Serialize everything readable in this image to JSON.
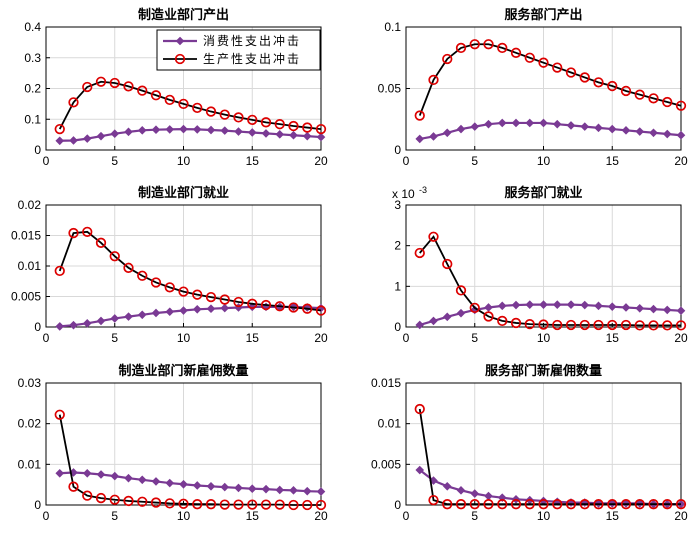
{
  "colors": {
    "consumption": "#7a3a94",
    "production_line": "#000000",
    "production_marker": "#dd0000"
  },
  "legend": {
    "consumption_label": "消费性支出冲击",
    "production_label": "生产性支出冲击"
  },
  "chart_data": [
    {
      "type": "line",
      "title": "制造业部门产出",
      "xlim": [
        0,
        20
      ],
      "ylim": [
        0,
        0.4
      ],
      "xticks": [
        0,
        5,
        10,
        15,
        20
      ],
      "yticks": [
        0,
        0.1,
        0.2,
        0.3,
        0.4
      ],
      "ytick_labels": [
        "0",
        "0.1",
        "0.2",
        "0.3",
        "0.4"
      ],
      "grid": true,
      "legend": "top-right",
      "x": [
        1,
        2,
        3,
        4,
        5,
        6,
        7,
        8,
        9,
        10,
        11,
        12,
        13,
        14,
        15,
        16,
        17,
        18,
        19,
        20
      ],
      "series": [
        {
          "name": "消费性支出冲击",
          "values": [
            0.03,
            0.031,
            0.037,
            0.045,
            0.053,
            0.059,
            0.064,
            0.066,
            0.067,
            0.068,
            0.067,
            0.065,
            0.063,
            0.06,
            0.057,
            0.054,
            0.051,
            0.048,
            0.045,
            0.042
          ]
        },
        {
          "name": "生产性支出冲击",
          "values": [
            0.068,
            0.155,
            0.205,
            0.222,
            0.218,
            0.207,
            0.193,
            0.178,
            0.163,
            0.15,
            0.137,
            0.125,
            0.115,
            0.106,
            0.098,
            0.09,
            0.084,
            0.078,
            0.073,
            0.068
          ]
        }
      ]
    },
    {
      "type": "line",
      "title": "服务部门产出",
      "xlim": [
        0,
        20
      ],
      "ylim": [
        0,
        0.1
      ],
      "xticks": [
        0,
        5,
        10,
        15,
        20
      ],
      "yticks": [
        0,
        0.05,
        0.1
      ],
      "ytick_labels": [
        "0",
        "0.05",
        "0.1"
      ],
      "grid": true,
      "x": [
        1,
        2,
        3,
        4,
        5,
        6,
        7,
        8,
        9,
        10,
        11,
        12,
        13,
        14,
        15,
        16,
        17,
        18,
        19,
        20
      ],
      "series": [
        {
          "name": "消费性支出冲击",
          "values": [
            0.009,
            0.011,
            0.014,
            0.017,
            0.019,
            0.021,
            0.022,
            0.022,
            0.022,
            0.022,
            0.021,
            0.02,
            0.019,
            0.018,
            0.017,
            0.016,
            0.015,
            0.014,
            0.013,
            0.012
          ]
        },
        {
          "name": "生产性支出冲击",
          "values": [
            0.028,
            0.057,
            0.074,
            0.083,
            0.086,
            0.086,
            0.083,
            0.079,
            0.075,
            0.071,
            0.067,
            0.063,
            0.059,
            0.055,
            0.052,
            0.048,
            0.045,
            0.042,
            0.039,
            0.036
          ]
        }
      ]
    },
    {
      "type": "line",
      "title": "制造业部门就业",
      "xlim": [
        0,
        20
      ],
      "ylim": [
        0,
        0.02
      ],
      "xticks": [
        0,
        5,
        10,
        15,
        20
      ],
      "yticks": [
        0,
        0.005,
        0.01,
        0.015,
        0.02
      ],
      "ytick_labels": [
        "0",
        "0.005",
        "0.01",
        "0.015",
        "0.02"
      ],
      "grid": true,
      "x": [
        1,
        2,
        3,
        4,
        5,
        6,
        7,
        8,
        9,
        10,
        11,
        12,
        13,
        14,
        15,
        16,
        17,
        18,
        19,
        20
      ],
      "series": [
        {
          "name": "消费性支出冲击",
          "values": [
            0.0001,
            0.0003,
            0.0006,
            0.001,
            0.0014,
            0.0017,
            0.002,
            0.0023,
            0.0025,
            0.0027,
            0.0029,
            0.003,
            0.0031,
            0.0032,
            0.0033,
            0.0033,
            0.0033,
            0.0033,
            0.0032,
            0.0031
          ]
        },
        {
          "name": "生产性支出冲击",
          "values": [
            0.0092,
            0.0154,
            0.0156,
            0.0138,
            0.0116,
            0.0097,
            0.0084,
            0.0073,
            0.0065,
            0.0058,
            0.0053,
            0.0049,
            0.0045,
            0.0041,
            0.0038,
            0.0036,
            0.0034,
            0.0032,
            0.003,
            0.0027
          ]
        }
      ]
    },
    {
      "type": "line",
      "title": "服务部门就业",
      "xlim": [
        0,
        20
      ],
      "ylim": [
        0,
        3
      ],
      "xticks": [
        0,
        5,
        10,
        15,
        20
      ],
      "yticks": [
        0,
        1,
        2,
        3
      ],
      "ytick_labels": [
        "0",
        "1",
        "2",
        "3"
      ],
      "y_multiplier_label": "x 10",
      "y_multiplier_exp": "-3",
      "grid": true,
      "x": [
        1,
        2,
        3,
        4,
        5,
        6,
        7,
        8,
        9,
        10,
        11,
        12,
        13,
        14,
        15,
        16,
        17,
        18,
        19,
        20
      ],
      "series": [
        {
          "name": "消费性支出冲击",
          "values": [
            0.05,
            0.15,
            0.25,
            0.34,
            0.42,
            0.48,
            0.52,
            0.54,
            0.55,
            0.55,
            0.55,
            0.55,
            0.54,
            0.52,
            0.5,
            0.48,
            0.46,
            0.44,
            0.42,
            0.4
          ]
        },
        {
          "name": "生产性支出冲击",
          "values": [
            1.82,
            2.22,
            1.55,
            0.9,
            0.47,
            0.26,
            0.15,
            0.1,
            0.07,
            0.06,
            0.05,
            0.05,
            0.05,
            0.05,
            0.05,
            0.05,
            0.04,
            0.04,
            0.04,
            0.04
          ]
        }
      ]
    },
    {
      "type": "line",
      "title": "制造业部门新雇佣数量",
      "xlim": [
        0,
        20
      ],
      "ylim": [
        0,
        0.03
      ],
      "xticks": [
        0,
        5,
        10,
        15,
        20
      ],
      "yticks": [
        0,
        0.01,
        0.02,
        0.03
      ],
      "ytick_labels": [
        "0",
        "0.01",
        "0.02",
        "0.03"
      ],
      "grid": true,
      "x": [
        1,
        2,
        3,
        4,
        5,
        6,
        7,
        8,
        9,
        10,
        11,
        12,
        13,
        14,
        15,
        16,
        17,
        18,
        19,
        20
      ],
      "series": [
        {
          "name": "消费性支出冲击",
          "values": [
            0.0078,
            0.008,
            0.0078,
            0.0075,
            0.0071,
            0.0066,
            0.0062,
            0.0058,
            0.0054,
            0.0051,
            0.0048,
            0.0046,
            0.0044,
            0.0042,
            0.004,
            0.0039,
            0.0037,
            0.0036,
            0.0034,
            0.0033
          ]
        },
        {
          "name": "生产性支出冲击",
          "values": [
            0.0222,
            0.0045,
            0.0023,
            0.0017,
            0.0013,
            0.001,
            0.0008,
            0.0006,
            0.0004,
            0.0003,
            0.0002,
            0.0002,
            0.0001,
            0.0001,
            0.0001,
            0.0001,
            0.0001,
            0.0,
            0.0,
            0.0
          ]
        }
      ]
    },
    {
      "type": "line",
      "title": "服务部门新雇佣数量",
      "xlim": [
        0,
        20
      ],
      "ylim": [
        0,
        0.015
      ],
      "xticks": [
        0,
        5,
        10,
        15,
        20
      ],
      "yticks": [
        0,
        0.005,
        0.01,
        0.015
      ],
      "ytick_labels": [
        "0",
        "0.005",
        "0.01",
        "0.015"
      ],
      "grid": true,
      "x": [
        1,
        2,
        3,
        4,
        5,
        6,
        7,
        8,
        9,
        10,
        11,
        12,
        13,
        14,
        15,
        16,
        17,
        18,
        19,
        20
      ],
      "series": [
        {
          "name": "消费性支出冲击",
          "values": [
            0.0043,
            0.003,
            0.0023,
            0.0018,
            0.0014,
            0.0011,
            0.0009,
            0.0007,
            0.0006,
            0.0005,
            0.0004,
            0.0003,
            0.0003,
            0.0002,
            0.0002,
            0.0002,
            0.0002,
            0.0001,
            0.0001,
            0.0001
          ]
        },
        {
          "name": "生产性支出冲击",
          "values": [
            0.0118,
            0.0006,
            0.0001,
            0.0001,
            0.0001,
            0.0001,
            0.0001,
            0.0001,
            0.0001,
            0.0001,
            0.0001,
            0.0001,
            0.0001,
            0.0001,
            0.0001,
            0.0001,
            0.0001,
            0.0001,
            0.0001,
            0.0001
          ]
        }
      ]
    }
  ]
}
